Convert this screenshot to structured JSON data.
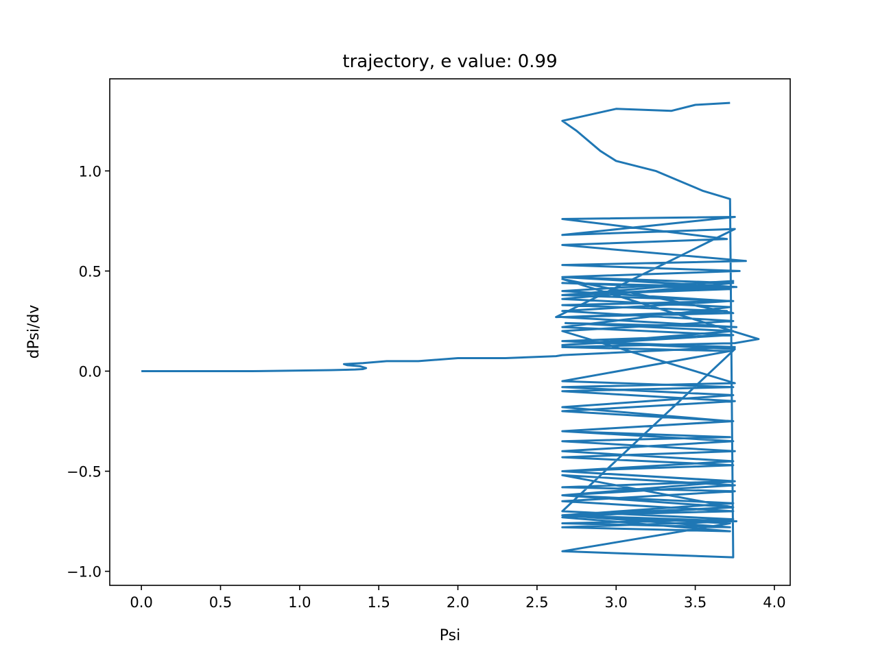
{
  "chart_data": {
    "type": "line",
    "title": "trajectory, e value: 0.99",
    "xlabel": "Psi",
    "ylabel": "dPsi/dv",
    "xlim": [
      -0.2,
      4.1
    ],
    "ylim": [
      -1.07,
      1.46
    ],
    "xticks": [
      0.0,
      0.5,
      1.0,
      1.5,
      2.0,
      2.5,
      3.0,
      3.5,
      4.0
    ],
    "xtick_labels": [
      "0.0",
      "0.5",
      "1.0",
      "1.5",
      "2.0",
      "2.5",
      "3.0",
      "3.5",
      "4.0"
    ],
    "yticks": [
      -1.0,
      -0.5,
      0.0,
      0.5,
      1.0
    ],
    "ytick_labels": [
      "−1.0",
      "−0.5",
      "0.0",
      "0.5",
      "1.0"
    ],
    "grid": false,
    "legend": "none",
    "series": [
      {
        "color": "#1f77b4",
        "x": [
          0.0,
          0.3,
          0.7,
          1.0,
          1.2,
          1.35,
          1.4,
          1.42,
          1.38,
          1.3,
          1.28,
          1.4,
          1.55,
          1.75,
          2.0,
          2.3,
          2.62,
          2.66,
          3.75,
          2.66,
          3.72,
          2.66,
          3.74,
          2.68,
          3.76,
          2.66,
          3.7,
          2.66,
          3.74,
          2.66,
          3.72,
          2.66,
          3.76,
          2.66,
          3.78,
          2.66,
          3.82,
          2.66,
          3.7,
          2.66,
          3.75,
          2.66,
          3.75,
          2.62,
          3.74,
          2.66,
          3.9,
          3.75,
          2.66,
          3.72,
          2.66,
          3.74,
          2.66,
          3.75,
          2.66,
          3.74,
          2.66,
          3.72,
          2.66,
          3.75,
          2.66,
          3.74,
          2.66,
          3.72,
          2.66,
          3.75,
          2.66,
          3.74,
          2.66,
          3.76,
          2.66,
          3.72,
          2.66,
          3.74,
          2.66,
          3.75,
          2.66,
          3.74,
          2.66,
          3.74,
          2.66,
          3.72,
          2.66,
          3.74,
          2.66,
          3.75,
          2.66,
          3.74,
          2.66,
          3.72,
          2.66,
          3.74,
          2.66,
          3.75,
          2.66,
          3.74,
          2.66,
          3.72,
          2.66,
          3.74,
          2.66,
          3.75,
          2.66,
          3.74,
          2.66,
          3.72,
          2.66,
          3.74,
          2.66,
          3.75,
          2.66,
          3.74,
          2.66,
          3.72,
          2.66,
          3.74,
          3.72,
          3.55,
          3.4,
          3.25,
          3.0,
          2.9,
          2.75,
          2.66,
          3.0,
          3.35,
          3.5,
          3.72
        ],
        "y": [
          0.0,
          0.0,
          0.0,
          0.003,
          0.005,
          0.008,
          0.01,
          0.015,
          0.025,
          0.03,
          0.035,
          0.04,
          0.05,
          0.05,
          0.065,
          0.065,
          0.075,
          0.08,
          0.12,
          0.15,
          0.18,
          0.13,
          0.2,
          0.24,
          0.22,
          0.27,
          0.3,
          0.33,
          0.35,
          0.38,
          0.41,
          0.44,
          0.42,
          0.47,
          0.5,
          0.53,
          0.55,
          0.63,
          0.66,
          0.76,
          0.77,
          0.68,
          0.71,
          0.27,
          0.29,
          0.46,
          0.16,
          0.14,
          0.12,
          0.1,
          -0.05,
          -0.08,
          -0.1,
          -0.15,
          -0.2,
          -0.25,
          -0.3,
          -0.33,
          -0.35,
          -0.4,
          -0.43,
          -0.47,
          -0.5,
          -0.55,
          -0.58,
          -0.6,
          -0.65,
          -0.7,
          -0.72,
          -0.75,
          -0.78,
          -0.8,
          -0.73,
          -0.68,
          -0.62,
          -0.55,
          -0.5,
          -0.45,
          -0.4,
          -0.35,
          -0.3,
          -0.25,
          -0.18,
          -0.12,
          -0.08,
          -0.06,
          0.2,
          0.25,
          0.3,
          0.35,
          0.4,
          0.45,
          0.38,
          0.42,
          0.47,
          0.44,
          0.36,
          0.32,
          0.22,
          0.18,
          0.15,
          0.11,
          -0.7,
          -0.74,
          -0.76,
          -0.78,
          -0.72,
          -0.68,
          -0.52,
          -0.57,
          -0.62,
          -0.66,
          -0.72,
          -0.76,
          -0.9,
          -0.93,
          0.86,
          0.9,
          0.95,
          1.0,
          1.05,
          1.1,
          1.2,
          1.25,
          1.31,
          1.3,
          1.33,
          1.34
        ]
      }
    ]
  }
}
